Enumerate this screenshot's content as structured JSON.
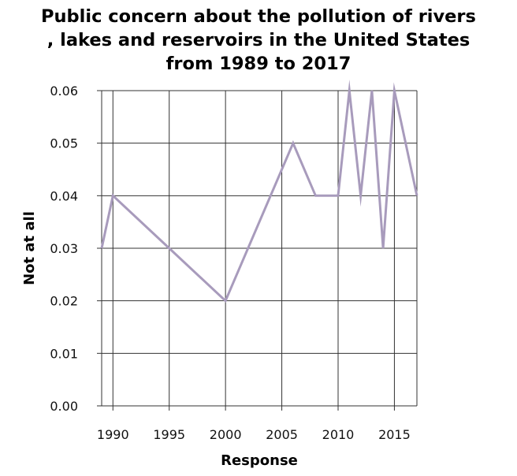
{
  "chart_data": {
    "type": "line",
    "title": "Public concern about the pollution of rivers\n, lakes and reservoirs in the United States\nfrom 1989 to 2017",
    "xlabel": "Response",
    "ylabel": "Not at all",
    "xlim": [
      1989,
      2017
    ],
    "ylim": [
      0,
      0.06
    ],
    "xticks": [
      1990,
      1995,
      2000,
      2005,
      2010,
      2015
    ],
    "yticks": [
      "0.00",
      "0.01",
      "0.02",
      "0.03",
      "0.04",
      "0.05",
      "0.06"
    ],
    "grid": true,
    "line_color": "#a89bbc",
    "series": [
      {
        "x": [
          1989,
          1990,
          1995,
          2000,
          2006,
          2008,
          2010,
          2011,
          2012,
          2013,
          2014,
          2015,
          2017
        ],
        "values": [
          0.03,
          0.04,
          0.03,
          0.02,
          0.05,
          0.04,
          0.04,
          0.06,
          0.04,
          0.06,
          0.03,
          0.06,
          0.04
        ]
      }
    ]
  }
}
